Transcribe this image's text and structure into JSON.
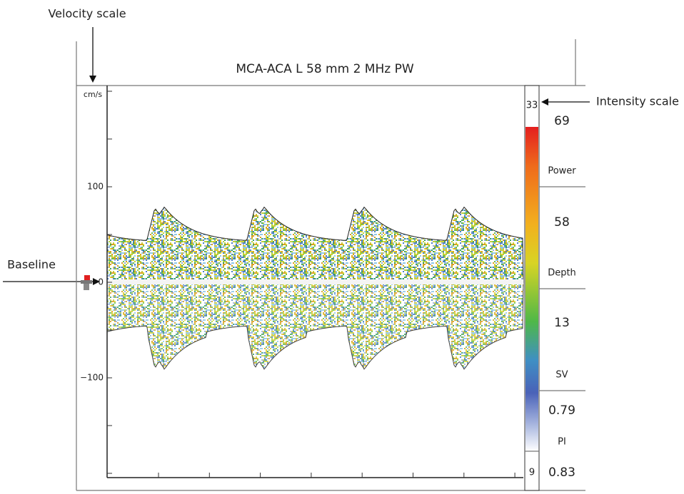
{
  "annotations": {
    "velocity_scale": "Velocity scale",
    "baseline": "Baseline",
    "intensity_scale": "Intensity scale"
  },
  "header": {
    "title": "MCA-ACA L 58 mm 2 MHz PW"
  },
  "velocity_axis": {
    "unit": "cm/s",
    "labels": [
      "100",
      "0",
      "−100"
    ]
  },
  "intensity_scale": {
    "top": "33",
    "bottom": "9"
  },
  "panel": [
    {
      "value": "69",
      "label": "Power"
    },
    {
      "value": "58",
      "label": "Depth"
    },
    {
      "value": "13",
      "label": "SV"
    },
    {
      "value": "0.79",
      "label": "PI"
    },
    {
      "value": "0.83"
    }
  ]
}
